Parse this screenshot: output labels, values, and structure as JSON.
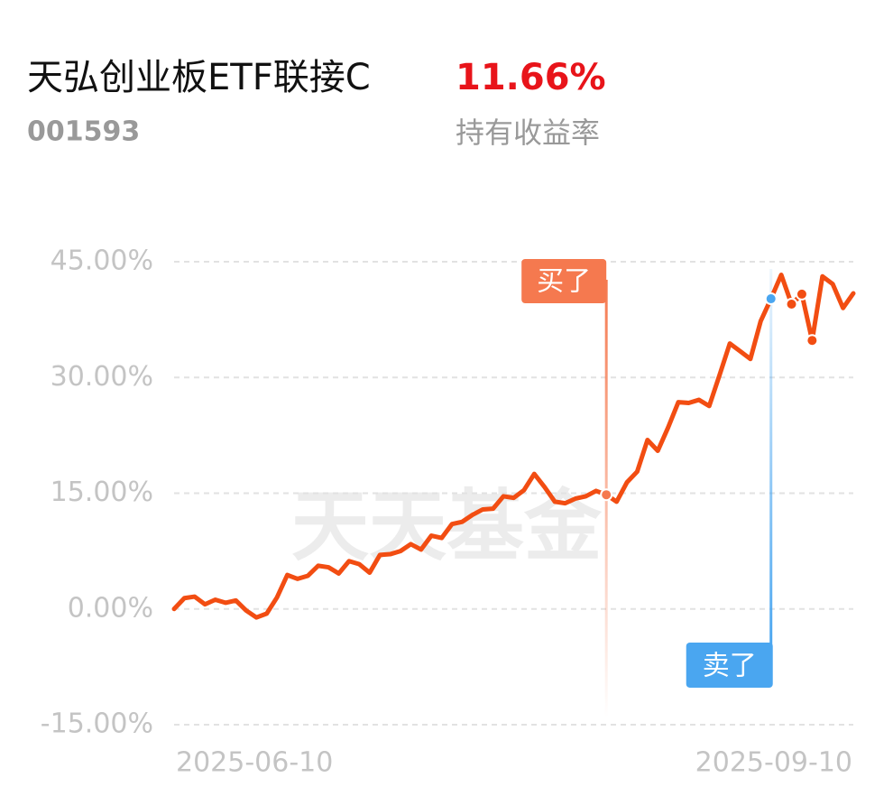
{
  "chart_data": {
    "type": "line",
    "title": "天弘创业板ETF联接C",
    "code": "001593",
    "holding_return": {
      "value": 11.66,
      "label": "11.66%"
    },
    "holding_return_label": "持有收益率",
    "watermark": "天天基金",
    "color": "#f24d12",
    "xticks": [
      "2025-06-10",
      "2025-09-10"
    ],
    "values": [
      0,
      1.4,
      1.6,
      0.6,
      1.2,
      0.8,
      1.1,
      -0.2,
      -1.1,
      -0.6,
      1.5,
      4.4,
      3.9,
      4.3,
      5.6,
      5.4,
      4.6,
      6.2,
      5.8,
      4.7,
      7.0,
      7.1,
      7.5,
      8.4,
      7.7,
      9.5,
      9.2,
      11.0,
      11.3,
      12.2,
      12.9,
      13.0,
      14.6,
      14.4,
      15.4,
      17.5,
      15.8,
      13.9,
      13.7,
      14.3,
      14.6,
      15.3,
      14.8,
      13.9,
      16.4,
      17.8,
      21.9,
      20.5,
      23.5,
      26.8,
      26.7,
      27.1,
      26.3,
      30.3,
      34.4,
      33.4,
      32.4,
      37.3,
      40.2,
      43.3,
      39.5,
      40.8,
      34.8,
      43.1,
      42.1,
      39.0,
      40.9
    ],
    "ylim": [
      -15,
      45
    ],
    "yticks": [
      {
        "value": -15,
        "label": "-15.00%"
      },
      {
        "value": 0,
        "label": "0.00%"
      },
      {
        "value": 15,
        "label": "15.00%"
      },
      {
        "value": 30,
        "label": "30.00%"
      },
      {
        "value": 45,
        "label": "45.00%"
      }
    ],
    "grid": true,
    "markers": [
      {
        "index": 42,
        "label": "买了",
        "color": "#f5794f"
      },
      {
        "index": 58,
        "label": "卖了",
        "color": "#4aa6f0"
      },
      {
        "index": 60,
        "color": "#f24d12"
      },
      {
        "index": 61,
        "color": "#f24d12"
      },
      {
        "index": 62,
        "color": "#f24d12"
      }
    ]
  }
}
